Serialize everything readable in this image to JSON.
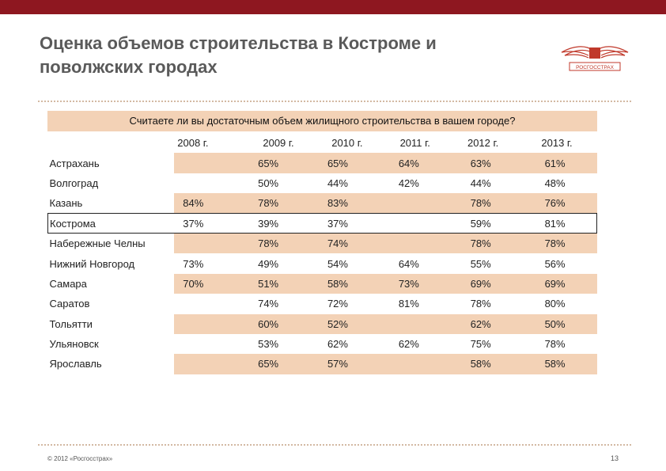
{
  "title": {
    "line1": "Оценка объемов строительства в Костроме и",
    "line2": "поволжских городах"
  },
  "logo": {
    "text": "РОСГОССТРАХ",
    "color": "#c0392b"
  },
  "question": "Считаете ли вы достаточным объем жилищного строительства в вашем городе?",
  "table": {
    "years": [
      "2008 г.",
      "2009 г.",
      "2010 г.",
      "2011 г.",
      "2012 г.",
      "2013 г."
    ],
    "rows": [
      {
        "city": "Астрахань",
        "values": [
          "",
          "65%",
          "65%",
          "64%",
          "63%",
          "61%"
        ]
      },
      {
        "city": "Волгоград",
        "values": [
          "",
          "50%",
          "44%",
          "42%",
          "44%",
          "48%"
        ]
      },
      {
        "city": "Казань",
        "values": [
          "84%",
          "78%",
          "83%",
          "",
          "78%",
          "76%"
        ]
      },
      {
        "city": "Кострома",
        "values": [
          "37%",
          "39%",
          "37%",
          "",
          "59%",
          "81%"
        ]
      },
      {
        "city": "Набережные Челны",
        "values": [
          "",
          "78%",
          "74%",
          "",
          "78%",
          "78%"
        ]
      },
      {
        "city": "Нижний Новгород",
        "values": [
          "73%",
          "49%",
          "54%",
          "64%",
          "55%",
          "56%"
        ]
      },
      {
        "city": "Самара",
        "values": [
          "70%",
          "51%",
          "58%",
          "73%",
          "69%",
          "69%"
        ]
      },
      {
        "city": "Саратов",
        "values": [
          "",
          "74%",
          "72%",
          "81%",
          "78%",
          "80%"
        ]
      },
      {
        "city": "Тольятти",
        "values": [
          "",
          "60%",
          "52%",
          "",
          "62%",
          "50%"
        ]
      },
      {
        "city": "Ульяновск",
        "values": [
          "",
          "53%",
          "62%",
          "62%",
          "75%",
          "78%"
        ]
      },
      {
        "city": "Ярославль",
        "values": [
          "",
          "65%",
          "57%",
          "",
          "58%",
          "58%"
        ]
      }
    ]
  },
  "footer": {
    "copyright": "© 2012 «Росгосстрах»",
    "page_number": "13"
  },
  "colors": {
    "topbar": "#8e1720",
    "shade": "#f3d2b6",
    "title": "#5a5a5a"
  }
}
